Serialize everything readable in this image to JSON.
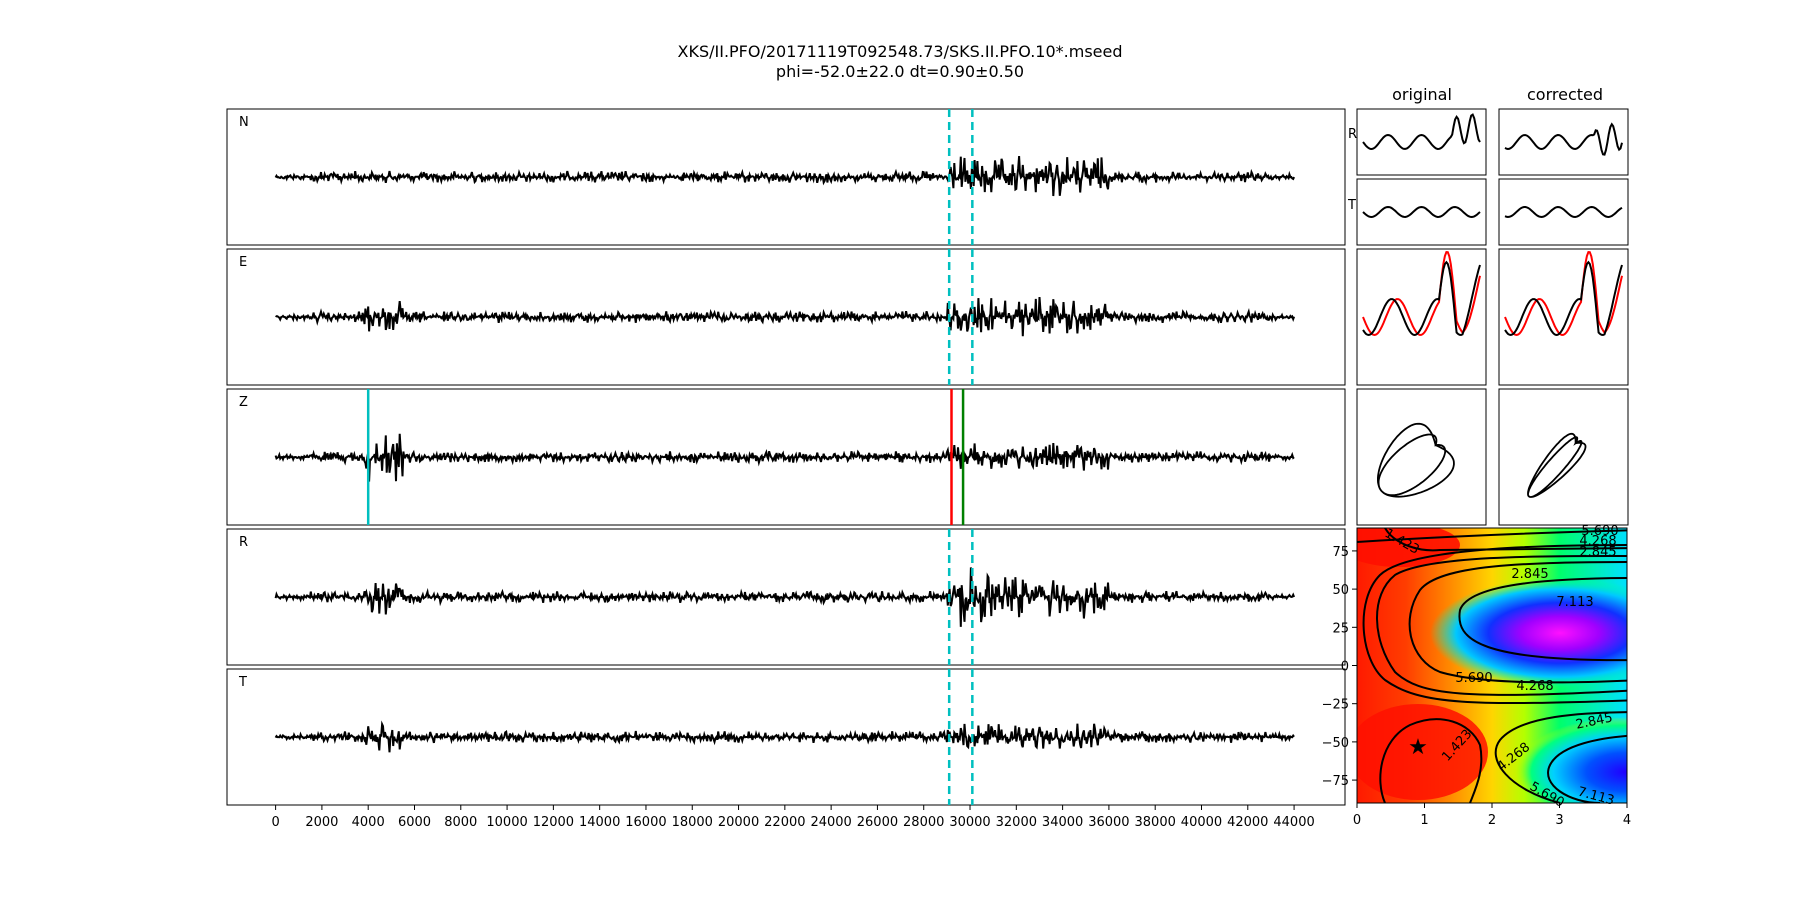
{
  "title": {
    "line1": "XKS/II.PFO/20171119T092548.73/SKS.II.PFO.10*.mseed",
    "line2": "phi=-52.0±22.0 dt=0.90±0.50"
  },
  "colors": {
    "trace": "#000000",
    "window_line": "#00bfbf",
    "pick_cyan": "#00bfbf",
    "pick_red": "#ff0000",
    "pick_green": "#008000",
    "orig_trace": "#ff0000"
  },
  "chart_data": [
    {
      "type": "line",
      "name": "seismograms",
      "panels": [
        "N",
        "E",
        "Z",
        "R",
        "T"
      ],
      "x_ticks": [
        0,
        2000,
        4000,
        6000,
        8000,
        10000,
        12000,
        14000,
        16000,
        18000,
        20000,
        22000,
        24000,
        26000,
        28000,
        30000,
        32000,
        34000,
        36000,
        38000,
        40000,
        42000,
        44000
      ],
      "xlim": [
        -2100,
        46200
      ],
      "data_x_range": [
        0,
        44000
      ],
      "window_lines_x": [
        29100,
        30100
      ],
      "z_picks": [
        {
          "x": 4000,
          "color": "cyan"
        },
        {
          "x": 29200,
          "color": "red"
        },
        {
          "x": 29700,
          "color": "green"
        }
      ],
      "grid": false
    },
    {
      "type": "line",
      "name": "particle-motion",
      "column_titles": [
        "original",
        "corrected"
      ],
      "row_labels": [
        "R",
        "T"
      ],
      "grid": false
    },
    {
      "type": "heatmap",
      "name": "error-surface",
      "x_ticks": [
        0,
        1,
        2,
        3,
        4
      ],
      "y_ticks": [
        75,
        50,
        25,
        0,
        -25,
        -50,
        -75
      ],
      "xlim": [
        0,
        4
      ],
      "ylim": [
        -90,
        90
      ],
      "contour_levels": [
        "1.423",
        "2.845",
        "4.268",
        "5.690",
        "7.113"
      ],
      "minimum": {
        "x": 0.9,
        "y": -52.0
      },
      "colormap": "gist_rainbow",
      "grid": false
    }
  ]
}
